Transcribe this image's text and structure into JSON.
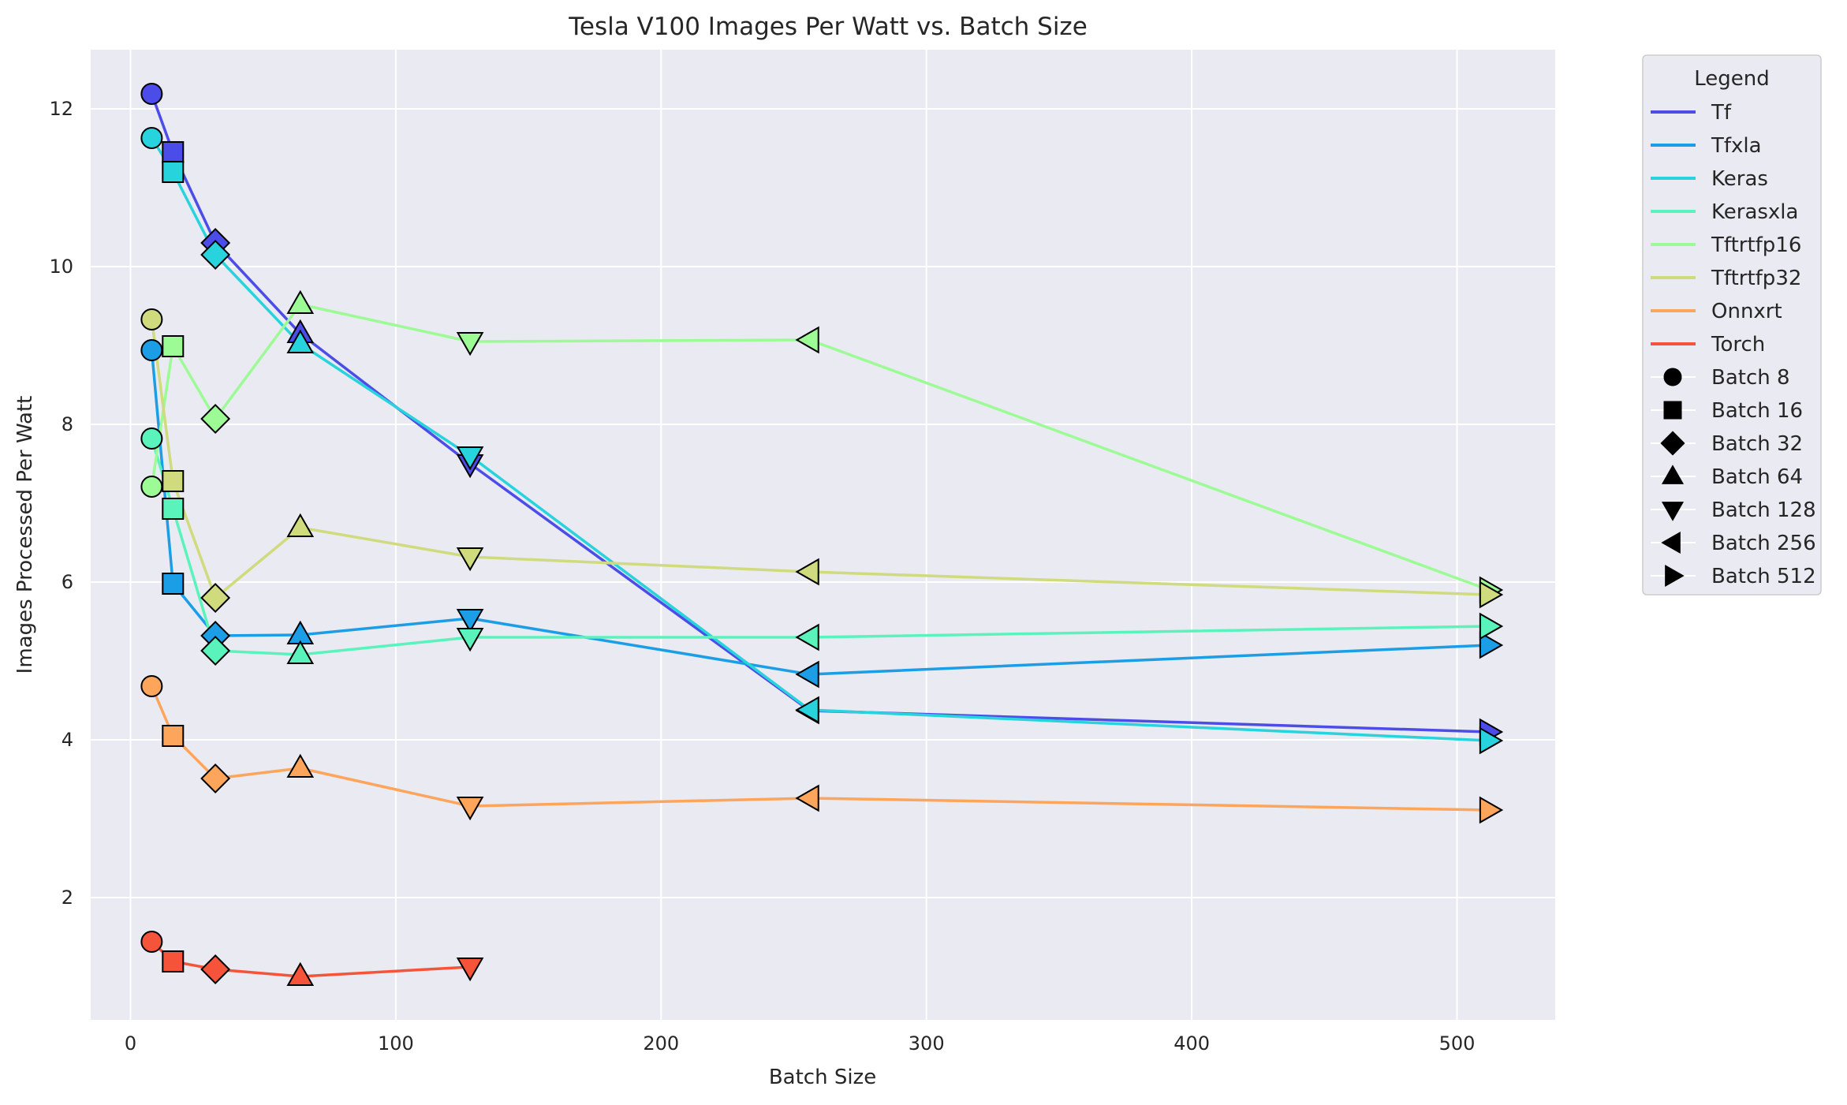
{
  "chart_data": {
    "type": "line",
    "title": "Tesla V100 Images Per Watt vs. Batch Size",
    "xlabel": "Batch Size",
    "ylabel": "Images Processed Per Watt",
    "xlim": [
      -15,
      537
    ],
    "ylim": [
      0.45,
      12.75
    ],
    "xticks": [
      0,
      100,
      200,
      300,
      400,
      500
    ],
    "yticks": [
      2,
      4,
      6,
      8,
      10,
      12
    ],
    "grid": true,
    "background": "#eaeaf2",
    "legend_title": "Legend",
    "legend_placement": "outside-top-right",
    "series": [
      {
        "name": "Tf",
        "color": "#4c4de8",
        "x": [
          8,
          16,
          32,
          64,
          128,
          256,
          512
        ],
        "values": [
          12.19,
          11.45,
          10.3,
          9.15,
          7.5,
          4.37,
          4.1
        ]
      },
      {
        "name": "Tfxla",
        "color": "#1b9ee5",
        "x": [
          8,
          16,
          32,
          64,
          128,
          256,
          512
        ],
        "values": [
          8.94,
          5.98,
          5.32,
          5.33,
          5.54,
          4.83,
          5.2
        ]
      },
      {
        "name": "Keras",
        "color": "#27d3dc",
        "x": [
          8,
          16,
          32,
          64,
          128,
          256,
          512
        ],
        "values": [
          11.63,
          11.2,
          10.15,
          9.02,
          7.6,
          4.38,
          3.99
        ]
      },
      {
        "name": "Kerasxla",
        "color": "#5bf3bc",
        "x": [
          8,
          16,
          32,
          64,
          128,
          256,
          512
        ],
        "values": [
          7.82,
          6.93,
          5.13,
          5.08,
          5.3,
          5.3,
          5.44
        ]
      },
      {
        "name": "Tftrtfp16",
        "color": "#9cfb95",
        "x": [
          8,
          16,
          32,
          64,
          128,
          256,
          512
        ],
        "values": [
          7.21,
          8.99,
          8.07,
          9.52,
          9.05,
          9.07,
          5.9
        ]
      },
      {
        "name": "Tftrtfp32",
        "color": "#cfdb7c",
        "x": [
          8,
          16,
          32,
          64,
          128,
          256,
          512
        ],
        "values": [
          9.33,
          7.28,
          5.8,
          6.69,
          6.32,
          6.13,
          5.84
        ]
      },
      {
        "name": "Onnxrt",
        "color": "#fda55b",
        "x": [
          8,
          16,
          32,
          64,
          128,
          256,
          512
        ],
        "values": [
          4.68,
          4.05,
          3.51,
          3.64,
          3.16,
          3.26,
          3.11
        ]
      },
      {
        "name": "Torch",
        "color": "#f5543a",
        "x": [
          8,
          16,
          32,
          64,
          128
        ],
        "values": [
          1.44,
          1.19,
          1.09,
          1.0,
          1.12
        ]
      }
    ],
    "markers": [
      {
        "batch": 8,
        "label": "Batch 8",
        "shape": "circle"
      },
      {
        "batch": 16,
        "label": "Batch 16",
        "shape": "square"
      },
      {
        "batch": 32,
        "label": "Batch 32",
        "shape": "diamond"
      },
      {
        "batch": 64,
        "label": "Batch 64",
        "shape": "triangle-up"
      },
      {
        "batch": 128,
        "label": "Batch 128",
        "shape": "triangle-down"
      },
      {
        "batch": 256,
        "label": "Batch 256",
        "shape": "triangle-left"
      },
      {
        "batch": 512,
        "label": "Batch 512",
        "shape": "triangle-right"
      }
    ]
  }
}
